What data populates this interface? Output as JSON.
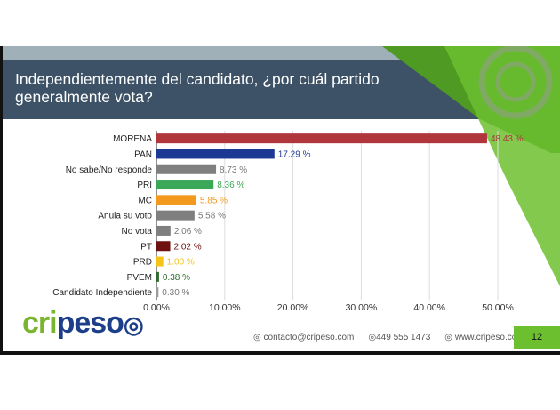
{
  "slide": {
    "title": "Independientemente del candidato, ¿por cuál partido generalmente vota?",
    "page_number": "12",
    "logo": "cripeso",
    "contacts": [
      {
        "icon": "email-icon",
        "text": "contacto@cripeso.com"
      },
      {
        "icon": "phone-icon",
        "text": "449 555 1473"
      },
      {
        "icon": "globe-icon",
        "text": "www.cripeso.com"
      }
    ]
  },
  "chart_data": {
    "type": "bar",
    "orientation": "horizontal",
    "title": "",
    "xlabel": "",
    "ylabel": "",
    "categories": [
      "MORENA",
      "PAN",
      "No sabe/No responde",
      "PRI",
      "MC",
      "Anula su voto",
      "No vota",
      "PT",
      "PRD",
      "PVEM",
      "Candidato Independiente"
    ],
    "values": [
      48.43,
      17.29,
      8.73,
      8.36,
      5.85,
      5.58,
      2.06,
      2.02,
      1.0,
      0.38,
      0.3
    ],
    "data_labels": [
      "48.43 %",
      "17.29 %",
      "8.73 %",
      "8.36 %",
      "5.85 %",
      "5.58 %",
      "2.06 %",
      "2.02 %",
      "1.00 %",
      "0.38 %",
      "0.30 %"
    ],
    "colors": [
      "#b0363c",
      "#1c3a94",
      "#7f7f7f",
      "#3aa857",
      "#f39a1e",
      "#7f7f7f",
      "#7f7f7f",
      "#6e1111",
      "#f5c41a",
      "#2d6a2d",
      "#9a9a9a"
    ],
    "xlim": [
      0,
      50
    ],
    "xticks": [
      "0.00%",
      "10.00%",
      "20.00%",
      "30.00%",
      "40.00%",
      "50.00%"
    ],
    "grid": true
  }
}
